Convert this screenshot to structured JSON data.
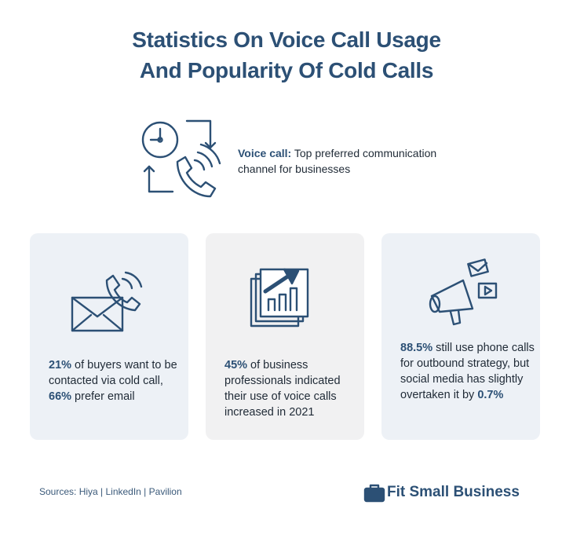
{
  "title": [
    "Statistics On Voice Call Usage",
    "And Popularity Of Cold Calls"
  ],
  "highlight": {
    "label": "Voice call:",
    "text": " Top preferred communication channel for businesses"
  },
  "cards": [
    {
      "segments": [
        {
          "text": "21%",
          "bold": true
        },
        {
          "text": " of buyers want to be contacted via cold call, ",
          "bold": false
        },
        {
          "text": "66%",
          "bold": true
        },
        {
          "text": " prefer email",
          "bold": false
        }
      ]
    },
    {
      "segments": [
        {
          "text": "45%",
          "bold": true
        },
        {
          "text": " of business professionals indicated their use of voice calls increased in 2021",
          "bold": false
        }
      ]
    },
    {
      "segments": [
        {
          "text": "88.5%",
          "bold": true
        },
        {
          "text": " still use phone calls for outbound strategy, but social media has slightly overtaken it by ",
          "bold": false
        },
        {
          "text": "0.7%",
          "bold": true
        }
      ]
    }
  ],
  "footer": {
    "sources": "Sources: Hiya | LinkedIn | Pavilion",
    "brand": "Fit Small Business"
  }
}
